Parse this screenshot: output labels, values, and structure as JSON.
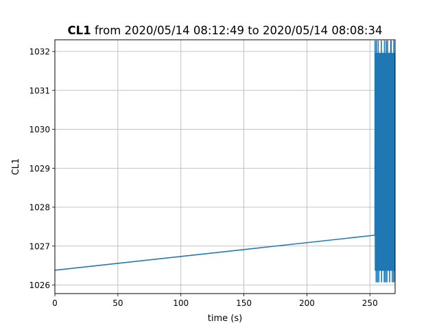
{
  "chart_data": {
    "type": "line",
    "title": {
      "bold": "CL1",
      "rest": " from 2020/05/14 08:12:49 to 2020/05/14 08:08:34"
    },
    "xlabel": "time (s)",
    "ylabel": "CL1",
    "xlim": [
      0,
      270
    ],
    "ylim": [
      1025.78,
      1032.3
    ],
    "xticks": [
      0,
      50,
      100,
      150,
      200,
      250
    ],
    "yticks": [
      1026,
      1027,
      1028,
      1029,
      1030,
      1031,
      1032
    ],
    "grid": true,
    "color": "#1f77b4",
    "series": [
      {
        "trend": {
          "x": [
            0,
            254
          ],
          "y": [
            1026.38,
            1027.28
          ]
        },
        "oscillation": {
          "x_start": 254,
          "x_end": 270,
          "y_low": 1026.38,
          "y_high": 1031.95,
          "y_min": 1026.08,
          "y_max": 1032.27,
          "cycles": 45
        }
      }
    ]
  }
}
